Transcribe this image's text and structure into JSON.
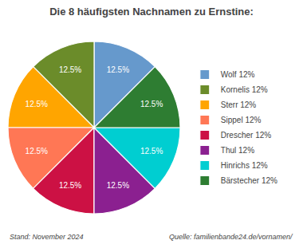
{
  "chart_data": {
    "type": "pie",
    "title": "Die 8 häufigsten Nachnamen zu Ernstine:",
    "categories": [
      "Wolf 12%",
      "Kornelis 12%",
      "Sterr 12%",
      "Sippel 12%",
      "Drescher 12%",
      "Thul 12%",
      "Hinrichs 12%",
      "Bärstecher 12%"
    ],
    "values": [
      12.5,
      12.5,
      12.5,
      12.5,
      12.5,
      12.5,
      12.5,
      12.5
    ],
    "value_labels": [
      "12.5%",
      "12.5%",
      "12.5%",
      "12.5%",
      "12.5%",
      "12.5%",
      "12.5%",
      "12.5%"
    ],
    "colors": [
      "#6699CC",
      "#6B8C2A",
      "#FFA500",
      "#FF7755",
      "#CC1144",
      "#8B2090",
      "#00CED1",
      "#2E7D32"
    ],
    "data_labels": true,
    "legend": "right",
    "annotations": [
      "Stand: November 2024",
      "Quelle: familienbande24.de/vornamen/"
    ]
  }
}
